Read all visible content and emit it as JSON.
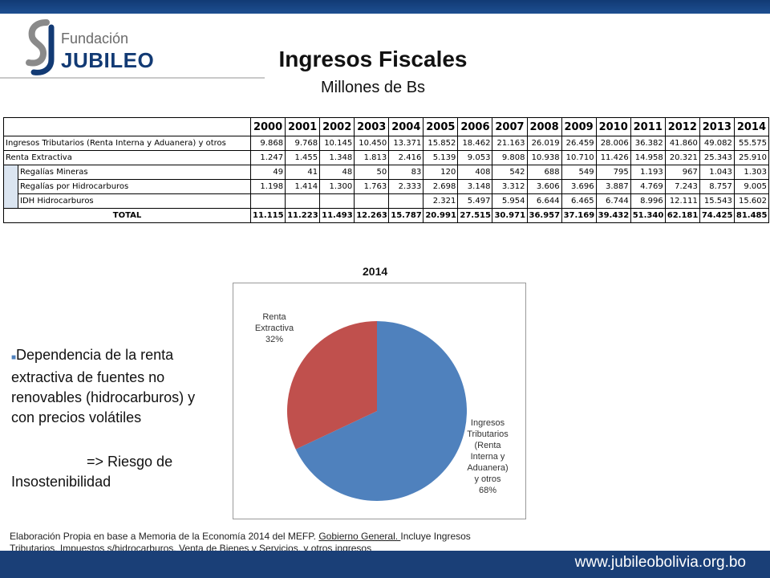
{
  "header": {
    "logo_top": "Fundación",
    "logo_bottom": "JUBILEO",
    "title": "Ingresos Fiscales",
    "subtitle": "Millones de Bs"
  },
  "table": {
    "years": [
      "2000",
      "2001",
      "2002",
      "2003",
      "2004",
      "2005",
      "2006",
      "2007",
      "2008",
      "2009",
      "2010",
      "2011",
      "2012",
      "2013",
      "2014"
    ],
    "rows": [
      {
        "label": "Ingresos Tributarios (Renta Interna y Aduanera) y otros",
        "values": [
          "9.868",
          "9.768",
          "10.145",
          "10.450",
          "13.371",
          "15.852",
          "18.462",
          "21.163",
          "26.019",
          "26.459",
          "28.006",
          "36.382",
          "41.860",
          "49.082",
          "55.575"
        ]
      },
      {
        "label": "Renta Extractiva",
        "values": [
          "1.247",
          "1.455",
          "1.348",
          "1.813",
          "2.416",
          "5.139",
          "9.053",
          "9.808",
          "10.938",
          "10.710",
          "11.426",
          "14.958",
          "20.321",
          "25.343",
          "25.910"
        ]
      },
      {
        "label": "Regalías Mineras",
        "values": [
          "49",
          "41",
          "48",
          "50",
          "83",
          "120",
          "408",
          "542",
          "688",
          "549",
          "795",
          "1.193",
          "967",
          "1.043",
          "1.303"
        ]
      },
      {
        "label": "Regalías por Hidrocarburos",
        "values": [
          "1.198",
          "1.414",
          "1.300",
          "1.763",
          "2.333",
          "2.698",
          "3.148",
          "3.312",
          "3.606",
          "3.696",
          "3.887",
          "4.769",
          "7.243",
          "8.757",
          "9.005"
        ]
      },
      {
        "label": "IDH Hidrocarburos",
        "values": [
          "",
          "",
          "",
          "",
          "",
          "2.321",
          "5.497",
          "5.954",
          "6.644",
          "6.465",
          "6.744",
          "8.996",
          "12.111",
          "15.543",
          "15.602"
        ]
      },
      {
        "label": "TOTAL",
        "values": [
          "11.115",
          "11.223",
          "11.493",
          "12.263",
          "15.787",
          "20.991",
          "27.515",
          "30.971",
          "36.957",
          "37.169",
          "39.432",
          "51.340",
          "62.181",
          "74.425",
          "81.485"
        ]
      }
    ]
  },
  "chart_data": {
    "type": "pie",
    "title": "2014",
    "slices": [
      {
        "label": "Ingresos Tributarios (Renta Interna y Aduanera) y otros",
        "percent_label": "68%",
        "value": 68,
        "color": "#4f81bd"
      },
      {
        "label": "Renta Extractiva",
        "percent_label": "32%",
        "value": 32,
        "color": "#c0504d"
      }
    ],
    "label_lines": {
      "tributarios": [
        "Ingresos",
        "Tributarios",
        "(Renta",
        "Interna y",
        "Aduanera)",
        "y otros",
        "68%"
      ],
      "extractiva": [
        "Renta",
        "Extractiva",
        "32%"
      ]
    }
  },
  "text": {
    "bullet": "Dependencia de la renta extractiva de fuentes no renovables (hidrocarburos) y con precios volátiles",
    "conclusion_1": "=> Riesgo de",
    "conclusion_2": "Insostenibilidad"
  },
  "footer": {
    "source_1": "Elaboración Propia en base a Memoria de la Economía 2014 del MEFP. ",
    "source_link": "Gobierno General. ",
    "source_2": "Incluye Ingresos",
    "source_3": "Tributarios, Impuestos s/hidrocarburos, Venta de Bienes y Servicios, y otros ingresos",
    "url": "www.jubileobolivia.org.bo"
  },
  "colors": {
    "accent": "#1a3f77",
    "pie_blue": "#4f81bd",
    "pie_red": "#c0504d"
  }
}
